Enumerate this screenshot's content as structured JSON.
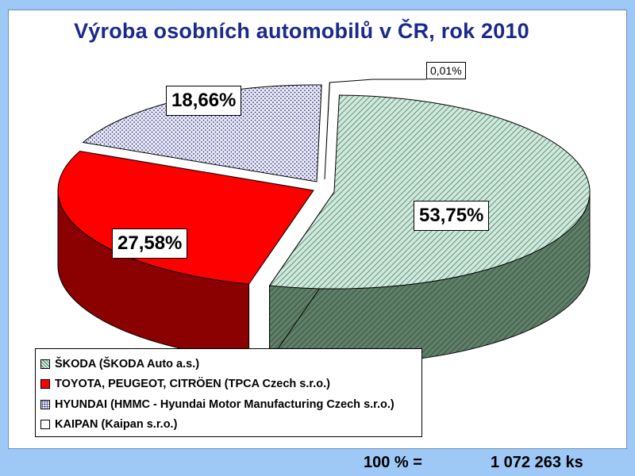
{
  "chart_data": {
    "type": "pie",
    "title": "Výroba osobních automobilů v ČR, rok 2010",
    "slices": [
      {
        "name": "ŠKODA (ŠKODA Auto a.s.)",
        "value": 53.75,
        "label": "53,75%",
        "color": "#cce8dc",
        "side_color": "#50705a",
        "pattern": "diagonal-hatch"
      },
      {
        "name": "TOYOTA, PEUGEOT, CITRÖEN (TPCA Czech s.r.o.)",
        "value": 27.58,
        "label": "27,58%",
        "color": "#ff0000",
        "side_color": "#8b0000",
        "pattern": "solid"
      },
      {
        "name": "HYUNDAI (HMMC - Hyundai Motor Manufacturing Czech s.r.o.)",
        "value": 18.66,
        "label": "18,66%",
        "color": "#e6e6f5",
        "side_color": "#3a3a70",
        "pattern": "dots"
      },
      {
        "name": "KAIPAN (Kaipan s.r.o.)",
        "value": 0.01,
        "label": "0,01%",
        "color": "#ffffff",
        "side_color": "#ffffff",
        "pattern": "solid"
      }
    ],
    "legend_position": "bottom-left"
  },
  "footer": {
    "equation": "100 % =",
    "total": "1 072 263  ks"
  },
  "colors": {
    "background": "#9ec8f6",
    "title": "#1a2a8a"
  }
}
